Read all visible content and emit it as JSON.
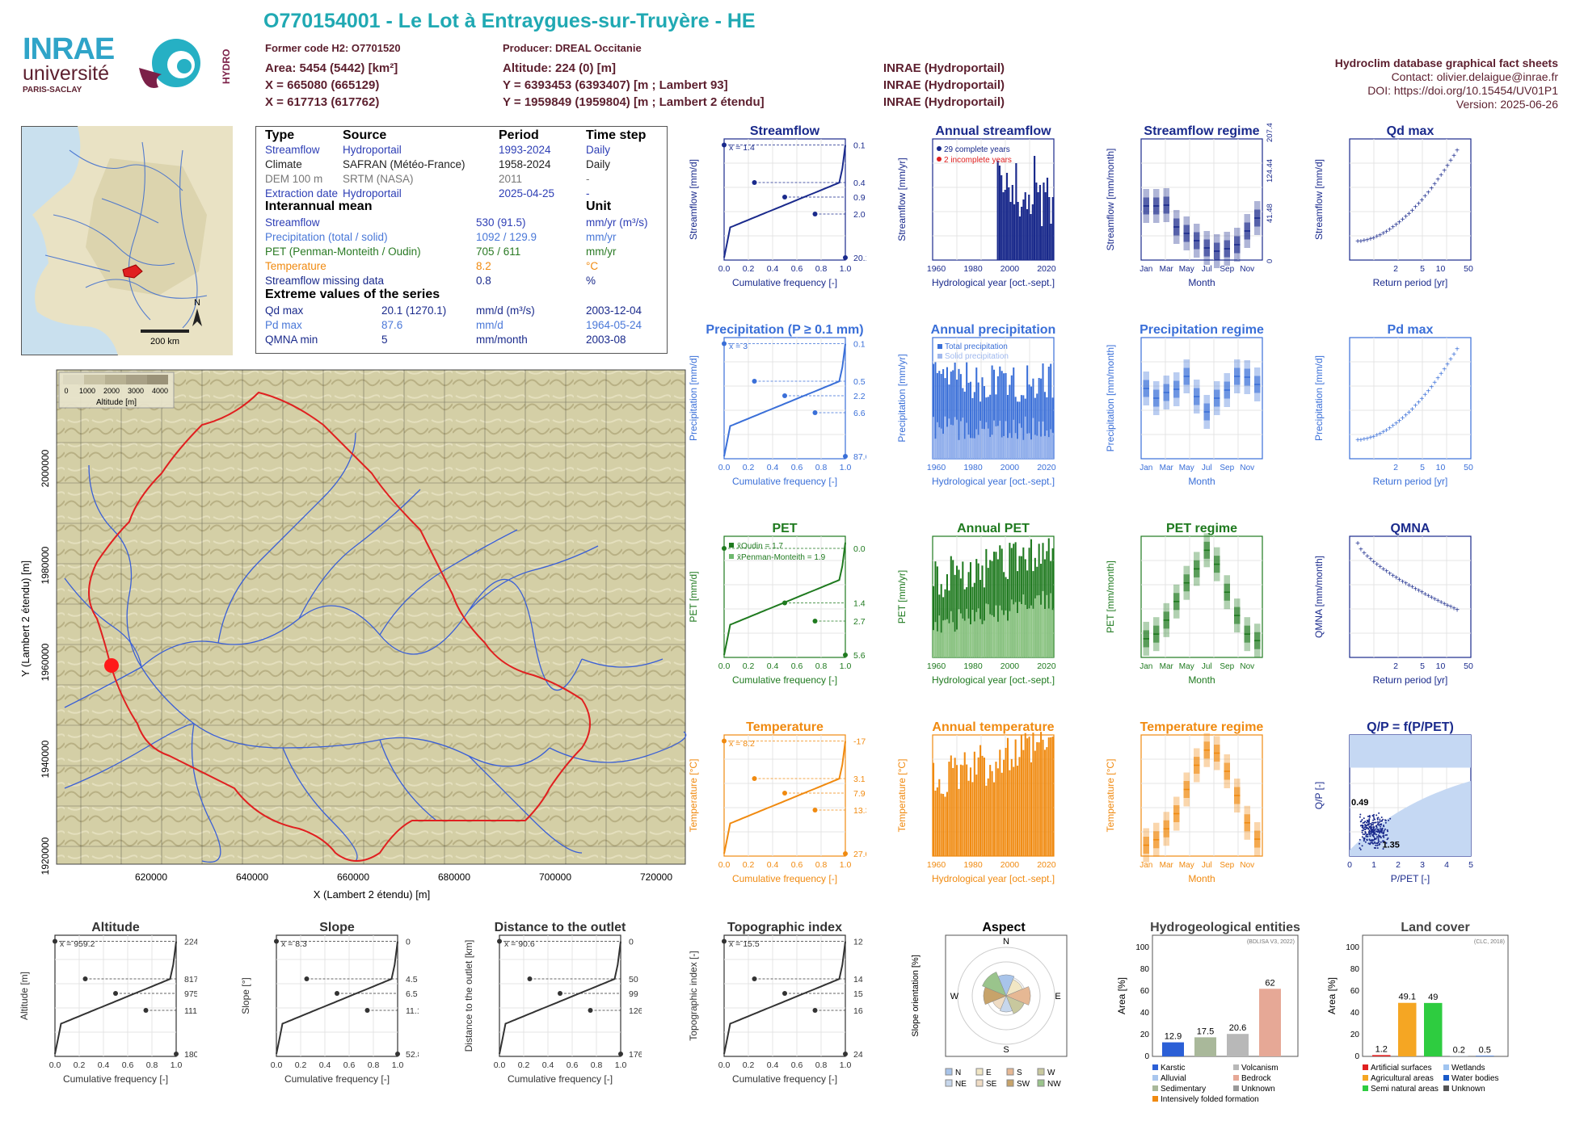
{
  "header": {
    "title": "O770154001 - Le Lot à Entraygues-sur-Truyère - HE",
    "former_code": "Former code H2: O7701520",
    "producer": "Producer: DREAL Occitanie",
    "area": "Area: 5454 (5442) [km²]",
    "altitude": "Altitude: 224 (0) [m]",
    "x93": "X = 665080 (665129)",
    "y93": "Y = 6393453 (6393407) [m ; Lambert 93]",
    "x2": "X = 617713 (617762)",
    "y2": "Y = 1959849 (1959804) [m ; Lambert 2 étendu]",
    "src1": "INRAE (Hydroportail)",
    "src2": "INRAE (Hydroportail)",
    "src3": "INRAE (Hydroportail)"
  },
  "logos": {
    "inrae": "INRAE",
    "universite": "université",
    "paris_saclay": "PARIS-SACLAY",
    "hydro": "HYDRO"
  },
  "credits": {
    "line1": "Hydroclim database graphical fact sheets",
    "line2": "Contact: olivier.delaigue@inrae.fr",
    "line3": "DOI: https://doi.org/10.15454/UV01P1",
    "line4": "Version: 2025-06-26"
  },
  "minimap": {
    "scale": "200 km",
    "north": "N"
  },
  "info": {
    "headers": [
      "Type",
      "Source",
      "Period",
      "Time step"
    ],
    "rows": [
      [
        "Streamflow",
        "Hydroportail",
        "1993-2024",
        "Daily"
      ],
      [
        "Climate",
        "SAFRAN (Météo-France)",
        "1958-2024",
        "Daily"
      ],
      [
        "DEM 100 m",
        "SRTM (NASA)",
        "2011",
        "-"
      ],
      [
        "Extraction date",
        "Hydroportail",
        "2025-04-25",
        "-"
      ]
    ],
    "mean_header": "Interannual mean",
    "unit_header": "Unit",
    "means": [
      [
        "Streamflow",
        "530 (91.5)",
        "mm/yr (m³/s)"
      ],
      [
        "Precipitation (total / solid)",
        "1092 / 129.9",
        "mm/yr"
      ],
      [
        "PET (Penman-Monteith / Oudin)",
        "705 / 611",
        "mm/yr"
      ],
      [
        "Temperature",
        "8.2",
        "°C"
      ],
      [
        "Streamflow missing data",
        "0.8",
        "%"
      ]
    ],
    "extreme_header": "Extreme values of the series",
    "extremes": [
      [
        "Qd max",
        "20.1 (1270.1)",
        "mm/d (m³/s)",
        "2003-12-04"
      ],
      [
        "Pd max",
        "87.6",
        "mm/d",
        "1964-05-24"
      ],
      [
        "QMNA min",
        "5",
        "mm/month",
        "2003-08"
      ]
    ]
  },
  "map": {
    "legend_ticks": [
      "0",
      "1000",
      "2000",
      "3000",
      "4000"
    ],
    "legend_label": "Altitude [m]",
    "xlabel": "X (Lambert 2 étendu) [m]",
    "ylabel": "Y (Lambert 2 étendu) [m]",
    "xticks": [
      "620000",
      "640000",
      "660000",
      "680000",
      "700000",
      "720000"
    ],
    "yticks": [
      "1920000",
      "1940000",
      "1960000",
      "1980000",
      "2000000"
    ]
  },
  "chart_data": [
    {
      "id": "streamflow",
      "type": "line",
      "title": "Streamflow",
      "xlabel": "Cumulative frequency [-]",
      "ylabel": "Streamflow [mm/d]",
      "ylog": true,
      "mean_label": "x̄ = 1.4",
      "right_ticks": [
        "20.1",
        "2.0",
        "0.9",
        "0.4",
        "0.1"
      ],
      "points": [
        [
          0,
          0.1
        ],
        [
          0.25,
          0.4
        ],
        [
          0.5,
          0.9
        ],
        [
          0.75,
          2.0
        ],
        [
          1,
          20.1
        ]
      ],
      "color": "#1a2a8c"
    },
    {
      "id": "annual_streamflow",
      "type": "bar",
      "title": "Annual streamflow",
      "xlabel": "Hydrological year [oct.-sept.]",
      "ylabel": "Streamflow [mm/yr]",
      "legend": [
        "29 complete years",
        "2 incomplete years"
      ],
      "ylim": [
        0,
        1000
      ],
      "x": [
        1993,
        1994,
        1995,
        1996,
        1997,
        1998,
        1999,
        2000,
        2001,
        2002,
        2003,
        2004,
        2005,
        2006,
        2007,
        2008,
        2009,
        2010,
        2011,
        2012,
        2013,
        2014,
        2015,
        2016,
        2017,
        2018,
        2019,
        2020,
        2021,
        2022,
        2023
      ],
      "values": [
        820,
        780,
        700,
        560,
        580,
        720,
        600,
        480,
        620,
        460,
        800,
        480,
        360,
        440,
        500,
        560,
        420,
        540,
        380,
        460,
        860,
        640,
        560,
        620,
        280,
        640,
        560,
        680,
        520,
        300,
        520
      ],
      "color": "#1a2a8c"
    },
    {
      "id": "streamflow_regime",
      "type": "bar",
      "title": "Streamflow regime",
      "xlabel": "Month",
      "ylabel": "Streamflow [mm/month]",
      "categories": [
        "Jan",
        "Feb",
        "Mar",
        "Apr",
        "May",
        "Jun",
        "Jul",
        "Aug",
        "Sep",
        "Oct",
        "Nov",
        "Dec"
      ],
      "values": [
        67,
        67,
        68,
        41,
        33,
        24,
        15,
        11,
        14,
        19,
        36,
        52
      ],
      "right_ticks": [
        "207.4",
        "124.44",
        "41.48",
        "0"
      ],
      "color": "#1a2a8c"
    },
    {
      "id": "qdmax",
      "type": "scatter",
      "title": "Qd max",
      "xlabel": "Return period [yr]",
      "ylabel": "Streamflow [mm/d]",
      "x_ticks": [
        "2",
        "5",
        "10",
        "50"
      ],
      "y_ticks": [
        "5",
        "10",
        "15",
        "20"
      ],
      "color": "#1a2a8c"
    },
    {
      "id": "precip",
      "type": "line",
      "title": "Precipitation (P ≥ 0.1 mm)",
      "xlabel": "Cumulative frequency [-]",
      "ylabel": "Precipitation [mm/d]",
      "ylog": true,
      "mean_label": "x̄ = 3",
      "right_ticks": [
        "87.6",
        "6.6",
        "2.2",
        "0.5",
        "0.1"
      ],
      "points": [
        [
          0,
          0.1
        ],
        [
          0.25,
          0.5
        ],
        [
          0.5,
          2.2
        ],
        [
          0.75,
          6.6
        ],
        [
          1,
          87.6
        ]
      ],
      "color": "#3a6fd8"
    },
    {
      "id": "annual_precip",
      "type": "bar",
      "title": "Annual precipitation",
      "xlabel": "Hydrological year [oct.-sept.]",
      "ylabel": "Precipitation [mm/yr]",
      "legend": [
        "Total precipitation",
        "Solid precipitation"
      ],
      "color": "#3a6fd8"
    },
    {
      "id": "precip_regime",
      "type": "bar",
      "title": "Precipitation regime",
      "xlabel": "Month",
      "ylabel": "Precipitation [mm/month]",
      "categories": [
        "Jan",
        "Feb",
        "Mar",
        "Apr",
        "May",
        "Jun",
        "Jul",
        "Aug",
        "Sep",
        "Oct",
        "Nov",
        "Dec"
      ],
      "values": [
        87,
        75,
        82,
        86,
        102,
        77,
        58,
        75,
        85,
        102,
        101,
        92
      ],
      "color": "#3a6fd8"
    },
    {
      "id": "pdmax",
      "type": "scatter",
      "title": "Pd max",
      "xlabel": "Return period [yr]",
      "ylabel": "Precipitation [mm/d]",
      "x_ticks": [
        "2",
        "5",
        "10",
        "50"
      ],
      "y_ticks": [
        "30",
        "40",
        "50",
        "60",
        "70",
        "80"
      ],
      "color": "#3a6fd8"
    },
    {
      "id": "pet",
      "type": "line",
      "title": "PET",
      "xlabel": "Cumulative frequency [-]",
      "ylabel": "PET [mm/d]",
      "legend": [
        "x̄Oudin = 1.7",
        "x̄Penman-Monteith = 1.9"
      ],
      "right_ticks": [
        "5.6",
        "2.7",
        "1.4",
        "0.0"
      ],
      "points": [
        [
          0,
          0
        ],
        [
          0.25,
          0.5
        ],
        [
          0.5,
          1.4
        ],
        [
          0.75,
          2.7
        ],
        [
          1,
          5.6
        ]
      ],
      "color": "#1f7a1f"
    },
    {
      "id": "annual_pet",
      "type": "bar",
      "title": "Annual PET",
      "xlabel": "Hydrological year [oct.-sept.]",
      "ylabel": "PET [mm/yr]",
      "color": "#1f7a1f"
    },
    {
      "id": "pet_regime",
      "type": "bar",
      "title": "PET regime",
      "xlabel": "Month",
      "ylabel": "PET [mm/month]",
      "categories": [
        "Jan",
        "Feb",
        "Mar",
        "Apr",
        "May",
        "Jun",
        "Jul",
        "Aug",
        "Sep",
        "Oct",
        "Nov",
        "Dec"
      ],
      "color": "#1f7a1f"
    },
    {
      "id": "qmna",
      "type": "scatter",
      "title": "QMNA",
      "xlabel": "Return period [yr]",
      "ylabel": "QMNA [mm/month]",
      "x_ticks": [
        "2",
        "5",
        "10",
        "50"
      ],
      "y_ticks": [
        "5",
        "10",
        "15"
      ],
      "color": "#1a2a8c"
    },
    {
      "id": "temp",
      "type": "line",
      "title": "Temperature",
      "xlabel": "Cumulative frequency [-]",
      "ylabel": "Temperature [°C]",
      "mean_label": "x̄ = 8.2",
      "right_ticks": [
        "27.0",
        "13.3",
        "7.9",
        "3.1",
        "-17.2"
      ],
      "points": [
        [
          0,
          -17.2
        ],
        [
          0.25,
          3.1
        ],
        [
          0.5,
          7.9
        ],
        [
          0.75,
          13.3
        ],
        [
          1,
          27.0
        ]
      ],
      "color": "#f08a10"
    },
    {
      "id": "annual_temp",
      "type": "bar",
      "title": "Annual temperature",
      "xlabel": "Hydrological year [oct.-sept.]",
      "ylabel": "Temperature [°C]",
      "color": "#f08a10"
    },
    {
      "id": "temp_regime",
      "type": "bar",
      "title": "Temperature regime",
      "xlabel": "Month",
      "ylabel": "Temperature [°C]",
      "categories": [
        "Jan",
        "Feb",
        "Mar",
        "Apr",
        "May",
        "Jun",
        "Jul",
        "Aug",
        "Sep",
        "Oct",
        "Nov",
        "Dec"
      ],
      "values": [
        0.8,
        1.7,
        3.5,
        6,
        10,
        14,
        16.5,
        16,
        13,
        9,
        4.5,
        1.8
      ],
      "color": "#f08a10"
    },
    {
      "id": "qp",
      "type": "scatter",
      "title": "Q/P = f(P/PET)",
      "xlabel": "P/PET [-]",
      "ylabel": "Q/P [-]",
      "labels": [
        "0.49",
        "1.35"
      ],
      "color": "#1a2a8c"
    },
    {
      "id": "altitude",
      "type": "line",
      "title": "Altitude",
      "xlabel": "Cumulative frequency [-]",
      "ylabel": "Altitude [m]",
      "mean_label": "x̄ = 959.2",
      "right_ticks": [
        "1809",
        "1117",
        "975",
        "817",
        "224"
      ],
      "points": [
        [
          0,
          224
        ],
        [
          0.25,
          817
        ],
        [
          0.5,
          975
        ],
        [
          0.75,
          1117
        ],
        [
          1,
          1809
        ]
      ]
    },
    {
      "id": "slope",
      "type": "line",
      "title": "Slope",
      "xlabel": "Cumulative frequency [-]",
      "ylabel": "Slope [°]",
      "mean_label": "x̄ = 8.3",
      "right_ticks": [
        "52.8",
        "11.1",
        "6.5",
        "4.5",
        "0"
      ]
    },
    {
      "id": "distance",
      "type": "line",
      "title": "Distance to the outlet",
      "xlabel": "Cumulative frequency [-]",
      "ylabel": "Distance to the outlet [km]",
      "mean_label": "x̄ = 90.6",
      "right_ticks": [
        "176",
        "126",
        "99",
        "50",
        "0"
      ]
    },
    {
      "id": "topo",
      "type": "line",
      "title": "Topographic index",
      "xlabel": "Cumulative frequency [-]",
      "ylabel": "Topographic index [-]",
      "mean_label": "x̄ = 15.5",
      "right_ticks": [
        "24",
        "16",
        "15",
        "14",
        "12"
      ]
    },
    {
      "id": "aspect",
      "type": "pie",
      "title": "Aspect",
      "ylabel": "Slope orientation [%]",
      "legend": [
        "N",
        "E",
        "S",
        "W",
        "NE",
        "SE",
        "SW",
        "NW"
      ]
    },
    {
      "id": "hydrogeo",
      "type": "bar",
      "title": "Hydrogeological entities",
      "ylabel": "Area [%]",
      "note": "(BDLISA V3, 2022)",
      "categories": [
        "Karstic",
        "Sedimentary",
        "Volcanism",
        "Bedrock"
      ],
      "values": [
        12.9,
        17.5,
        20.6,
        62
      ],
      "legend": [
        "Karstic",
        "Alluvial",
        "Sedimentary",
        "Intensively folded formation",
        "Volcanism",
        "Bedrock",
        "Unknown"
      ]
    },
    {
      "id": "landcover",
      "type": "bar",
      "title": "Land cover",
      "ylabel": "Area [%]",
      "note": "(CLC, 2018)",
      "categories": [
        "Artificial surfaces",
        "Agricultural areas",
        "Semi natural areas",
        "Wetlands",
        "Water bodies"
      ],
      "values": [
        1.2,
        49.1,
        49,
        0.2,
        0.5
      ],
      "legend": [
        "Artificial surfaces",
        "Agricultural areas",
        "Semi natural areas",
        "Wetlands",
        "Water bodies",
        "Unknown"
      ]
    }
  ]
}
